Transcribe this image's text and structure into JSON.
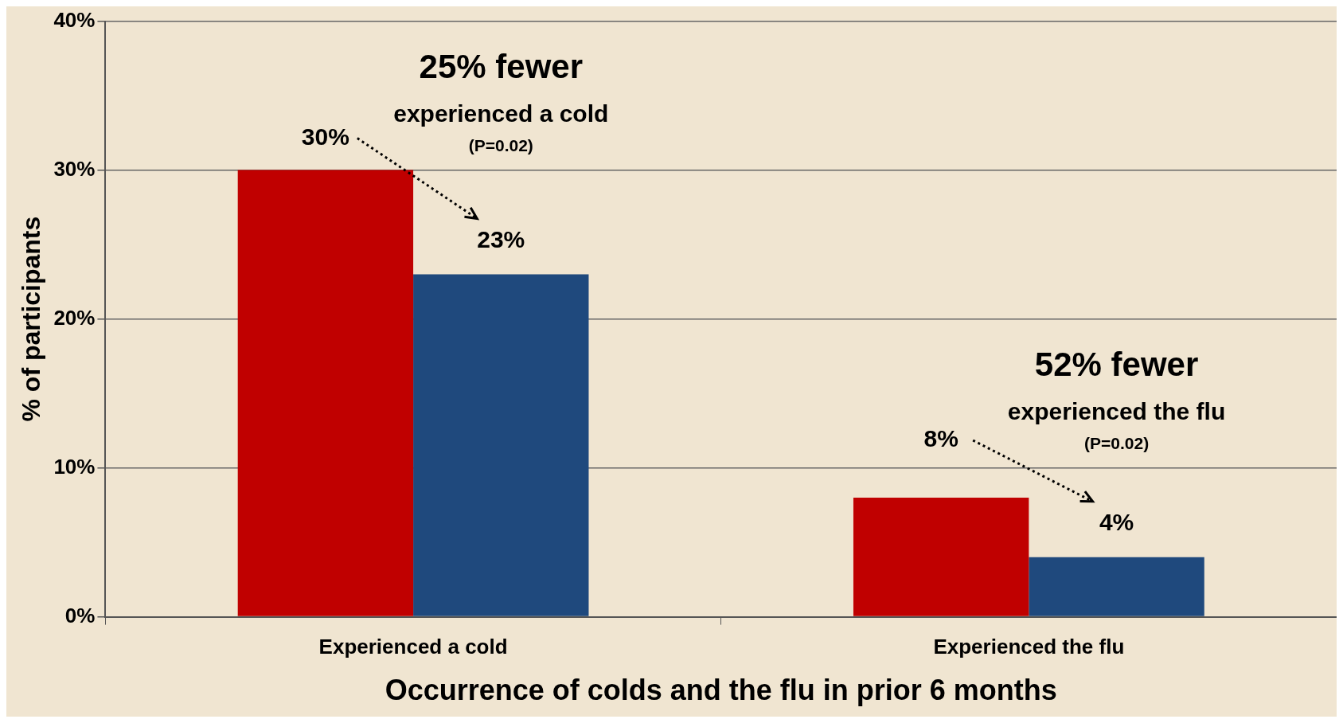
{
  "chart_data": {
    "type": "bar",
    "xlabel": "Occurrence of colds and the flu in prior 6 months",
    "ylabel": "% of participants",
    "categories": [
      "Experienced a cold",
      "Experienced the flu"
    ],
    "series": [
      {
        "color": "#c00000",
        "values": [
          30,
          8
        ],
        "value_labels": [
          "30%",
          "8%"
        ]
      },
      {
        "color": "#1f497d",
        "values": [
          23,
          4
        ],
        "value_labels": [
          "23%",
          "4%"
        ]
      }
    ],
    "ylim": [
      0,
      40
    ],
    "yticks": [
      {
        "value": 0,
        "label": "0%"
      },
      {
        "value": 10,
        "label": "10%"
      },
      {
        "value": 20,
        "label": "20%"
      },
      {
        "value": 30,
        "label": "30%"
      },
      {
        "value": 40,
        "label": "40%"
      }
    ],
    "grid": "y",
    "legend": false,
    "annotations": [
      "25% fewer",
      "experienced a cold",
      "(P=0.02)",
      "52% fewer",
      "experienced the flu",
      "(P=0.02)"
    ]
  }
}
